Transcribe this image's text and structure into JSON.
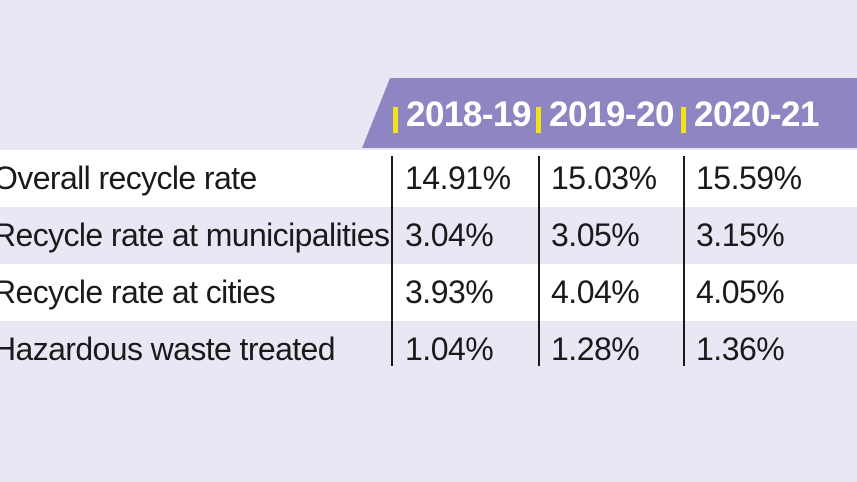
{
  "chart_data": {
    "type": "table",
    "columns": [
      "2018-19",
      "2019-20",
      "2020-21"
    ],
    "rows": [
      {
        "label": "Overall recycle rate",
        "values": [
          "14.91%",
          "15.03%",
          "15.59%"
        ]
      },
      {
        "label": "Recycle rate at municipalities",
        "values": [
          "3.04%",
          "3.05%",
          "3.15%"
        ]
      },
      {
        "label": "Recycle rate at cities",
        "values": [
          "3.93%",
          "4.04%",
          "4.05%"
        ]
      },
      {
        "label": "Hazardous waste treated",
        "values": [
          "1.04%",
          "1.28%",
          "1.36%"
        ]
      }
    ]
  },
  "colors": {
    "header_band": "#8d86c2",
    "marker": "#f2e21a",
    "background": "#e9e7f3",
    "row_white": "#ffffff"
  }
}
